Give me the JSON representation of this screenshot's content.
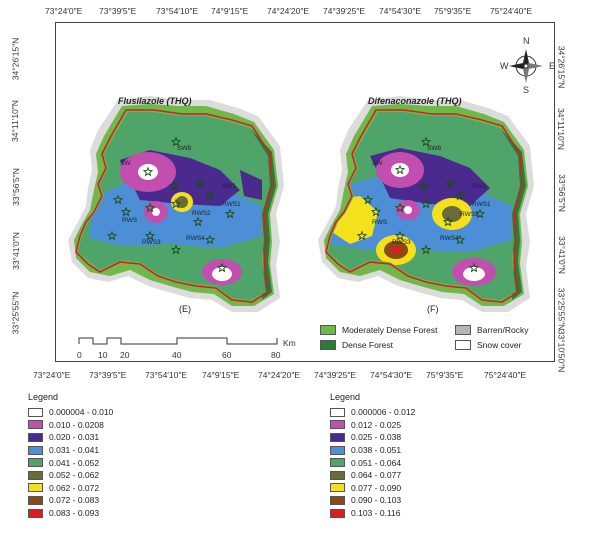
{
  "top_lon_labels": [
    "73°24′0″E",
    "73°39′5″E",
    "73°54′10″E",
    "74°9′15″E",
    "74°24′20″E",
    "74°39′25″E",
    "74°54′30″E",
    "75°9′35″E",
    "75°24′40″E"
  ],
  "bottom_lon_labels": [
    "73°24′0″E",
    "73°39′5″E",
    "73°54′10″E",
    "74°9′15″E",
    "74°24′20″E",
    "74°39′25″E",
    "74°54′30″E",
    "75°9′35″E",
    "75°24′40″E"
  ],
  "left_lat_labels": [
    "34°26′15″N",
    "34°11′10″N",
    "33°56′5″N",
    "33°41′0″N",
    "33°25′55″N"
  ],
  "right_lat_labels": [
    "34°26′15″N",
    "34°11′10″N",
    "33°56′5″N",
    "33°41′0″N",
    "33°25′55″N",
    "33°10′50″N"
  ],
  "panels": [
    {
      "title": "Flusilazole (THQ)",
      "letter": "(E)"
    },
    {
      "title": "Difenaconazole (THQ)",
      "letter": "(F)"
    }
  ],
  "site_labels": [
    "SW8",
    "SW",
    "SW1",
    "RWS",
    "RWS1",
    "RWS2",
    "RWS3",
    "RWS4",
    "RWS5",
    "RW"
  ],
  "compass": {
    "n": "N",
    "s": "S",
    "e": "E",
    "w": "W"
  },
  "scale": {
    "ticks": [
      "0",
      "10",
      "20",
      "40",
      "60",
      "80"
    ],
    "unit": "Km"
  },
  "land_cover": [
    {
      "label": "Moderately Dense Forest",
      "color": "#6fb84a"
    },
    {
      "label": "Dense Forest",
      "color": "#2d7a3a"
    },
    {
      "label": "Barren/Rocky",
      "color": "#b5b5b5"
    },
    {
      "label": "Snow cover",
      "color": "#ffffff"
    }
  ],
  "legend_left": {
    "title": "Legend",
    "items": [
      {
        "label": "0.000004 - 0.010",
        "color": "#ffffff"
      },
      {
        "label": "0.010 - 0.0208",
        "color": "#c24fb0"
      },
      {
        "label": "0.020 - 0.031",
        "color": "#4b2a8f"
      },
      {
        "label": "0.031 - 0.041",
        "color": "#4d8fd6"
      },
      {
        "label": "0.041 - 0.052",
        "color": "#4fa46a"
      },
      {
        "label": "0.052 - 0.062",
        "color": "#6b6b3a"
      },
      {
        "label": "0.062 - 0.072",
        "color": "#f4e11c"
      },
      {
        "label": "0.072 - 0.083",
        "color": "#8a4a14"
      },
      {
        "label": "0.083 - 0.093",
        "color": "#d42020"
      }
    ]
  },
  "legend_right": {
    "title": "Legend",
    "items": [
      {
        "label": "0.000006 - 0.012",
        "color": "#ffffff"
      },
      {
        "label": "0.012 - 0.025",
        "color": "#c24fb0"
      },
      {
        "label": "0.025 - 0.038",
        "color": "#4b2a8f"
      },
      {
        "label": "0.038 - 0.051",
        "color": "#4d8fd6"
      },
      {
        "label": "0.051 - 0.064",
        "color": "#4fa46a"
      },
      {
        "label": "0.064 - 0.077",
        "color": "#6b6b3a"
      },
      {
        "label": "0.077 - 0.090",
        "color": "#f4e11c"
      },
      {
        "label": "0.090 - 0.103",
        "color": "#8a4a14"
      },
      {
        "label": "0.103 - 0.116",
        "color": "#d42020"
      }
    ]
  }
}
